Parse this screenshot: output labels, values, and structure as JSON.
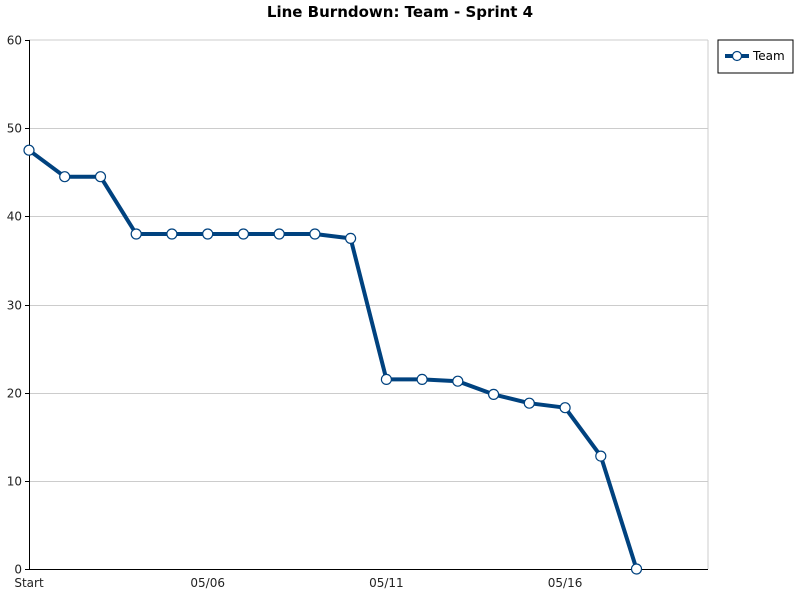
{
  "chart_data": {
    "type": "line",
    "title": "Line Burndown: Team - Sprint 4",
    "xlabel": "",
    "ylabel": "",
    "ylim": [
      0,
      60
    ],
    "yticks": [
      "0",
      "10",
      "20",
      "30",
      "40",
      "50",
      "60"
    ],
    "xtick_labels": [
      {
        "index": 0,
        "label": "Start"
      },
      {
        "index": 5,
        "label": "05/06"
      },
      {
        "index": 10,
        "label": "05/11"
      },
      {
        "index": 15,
        "label": "05/16"
      }
    ],
    "x_slots": 19,
    "grid": true,
    "legend_position": "right",
    "series": [
      {
        "name": "Team",
        "color": "#00427f",
        "values": [
          47.5,
          44.5,
          44.5,
          38,
          38,
          38,
          38,
          38,
          38,
          37.5,
          21.5,
          21.5,
          21.3,
          19.8,
          18.8,
          18.3,
          12.8,
          0
        ]
      }
    ]
  }
}
